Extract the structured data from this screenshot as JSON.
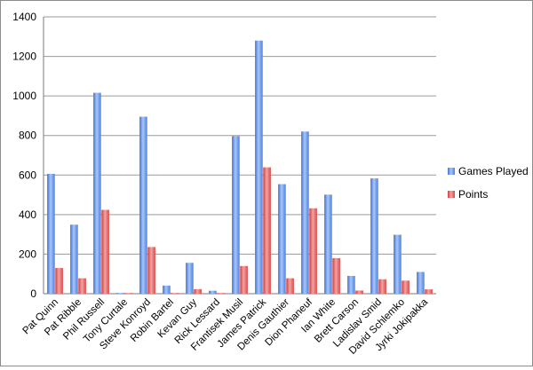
{
  "chart_data": {
    "type": "bar",
    "categories": [
      "Pat Quinn",
      "Pat Ribble",
      "Phil Russell",
      "Tony Curtale",
      "Steve Konroyd",
      "Robin Bartel",
      "Kevan Guy",
      "Rick Lessard",
      "Frantisek Musil",
      "James Patrick",
      "Denis Gauthier",
      "Dion Phaneuf",
      "Ian White",
      "Brett Carson",
      "Ladislav Smid",
      "David Schlemko",
      "Jyrki Jokipakka"
    ],
    "series": [
      {
        "name": "Games Played",
        "color": "#5b8ee6",
        "values": [
          606,
          349,
          1016,
          2,
          895,
          41,
          156,
          15,
          797,
          1280,
          554,
          820,
          501,
          90,
          583,
          298,
          110
        ]
      },
      {
        "name": "Points",
        "color": "#e05656",
        "values": [
          130,
          78,
          424,
          0,
          236,
          1,
          23,
          3,
          140,
          639,
          78,
          432,
          180,
          16,
          73,
          66,
          22
        ]
      }
    ],
    "ylim": [
      0,
      1400
    ],
    "yticks": [
      0,
      200,
      400,
      600,
      800,
      1000,
      1200,
      1400
    ],
    "grid": true,
    "legend_position": "right"
  }
}
